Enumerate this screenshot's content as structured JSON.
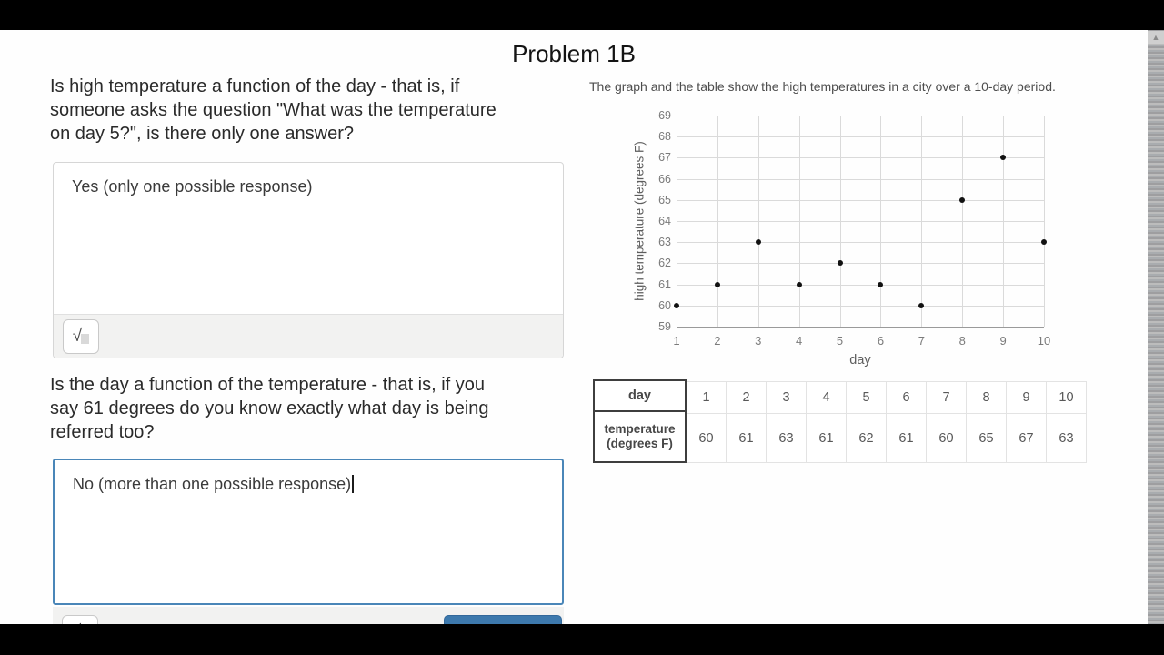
{
  "page": {
    "title": "Problem 1B",
    "accent_color": "#3d79ad",
    "focus_border_color": "#4a86b8"
  },
  "questions": [
    {
      "prompt_lines": [
        "Is high temperature a function of the day - that is, if",
        "someone asks the question \"What was the temperature",
        "on day 5?\", is there only one answer?"
      ],
      "answer": "Yes (only one possible response)"
    },
    {
      "prompt_lines": [
        "Is the day a function of the temperature - that is, if you",
        "say 61 degrees do you know exactly what day is being",
        "referred too?"
      ],
      "answer": "No (more than one possible response)"
    }
  ],
  "math_toolbar": {
    "sqrt_label": "√"
  },
  "right_panel": {
    "caption": "The graph and the table show the high temperatures in a city over a 10-day period."
  },
  "chart_data": {
    "type": "scatter",
    "x": [
      1,
      2,
      3,
      4,
      5,
      6,
      7,
      8,
      9,
      10
    ],
    "y": [
      60,
      61,
      63,
      61,
      62,
      61,
      60,
      65,
      67,
      63
    ],
    "xlabel": "day",
    "ylabel": "high temperature (degrees F)",
    "xlim": [
      1,
      10
    ],
    "ylim": [
      59,
      69
    ],
    "x_ticks": [
      1,
      2,
      3,
      4,
      5,
      6,
      7,
      8,
      9,
      10
    ],
    "y_ticks": [
      59,
      60,
      61,
      62,
      63,
      64,
      65,
      66,
      67,
      68,
      69
    ],
    "grid": true,
    "point_color": "#121212"
  },
  "table": {
    "row_headers": [
      "day",
      "temperature (degrees F)"
    ],
    "days": [
      "1",
      "2",
      "3",
      "4",
      "5",
      "6",
      "7",
      "8",
      "9",
      "10"
    ],
    "temperatures": [
      "60",
      "61",
      "63",
      "61",
      "62",
      "61",
      "60",
      "65",
      "67",
      "63"
    ]
  }
}
